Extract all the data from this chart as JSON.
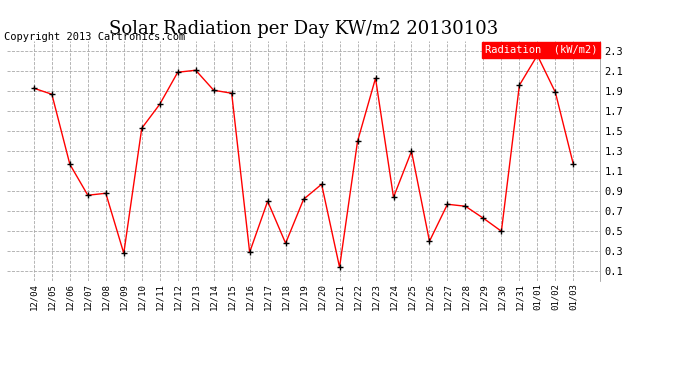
{
  "title": "Solar Radiation per Day KW/m2 20130103",
  "copyright": "Copyright 2013 Cartronics.com",
  "legend_label": "Radiation  (kW/m2)",
  "x_labels": [
    "12/04",
    "12/05",
    "12/06",
    "12/07",
    "12/08",
    "12/09",
    "12/10",
    "12/11",
    "12/12",
    "12/13",
    "12/14",
    "12/15",
    "12/16",
    "12/17",
    "12/18",
    "12/19",
    "12/20",
    "12/21",
    "12/22",
    "12/23",
    "12/24",
    "12/25",
    "12/26",
    "12/27",
    "12/28",
    "12/29",
    "12/30",
    "12/31",
    "01/01",
    "01/02",
    "01/03"
  ],
  "y_values": [
    1.93,
    1.87,
    1.17,
    0.86,
    0.88,
    0.28,
    1.53,
    1.77,
    2.09,
    2.11,
    1.91,
    1.88,
    0.29,
    0.8,
    0.38,
    0.82,
    0.97,
    0.14,
    1.4,
    2.03,
    0.84,
    1.3,
    0.4,
    0.77,
    0.75,
    0.63,
    0.5,
    1.96,
    2.26,
    1.89,
    1.17
  ],
  "y_ticks": [
    0.1,
    0.3,
    0.5,
    0.7,
    0.9,
    1.1,
    1.3,
    1.5,
    1.7,
    1.9,
    2.1,
    2.3
  ],
  "y_tick_labels": [
    "0.1",
    "0.3",
    "0.5",
    "0.7",
    "0.9",
    "1.1",
    "1.3",
    "1.5",
    "1.7",
    "1.9",
    "2.1",
    "2.3"
  ],
  "ylim": [
    0.0,
    2.4
  ],
  "line_color": "red",
  "marker_color": "black",
  "bg_color": "#ffffff",
  "plot_bg_color": "#ffffff",
  "grid_color": "#aaaaaa",
  "title_fontsize": 13,
  "copyright_fontsize": 7.5,
  "legend_bg_color": "red",
  "legend_text_color": "white"
}
